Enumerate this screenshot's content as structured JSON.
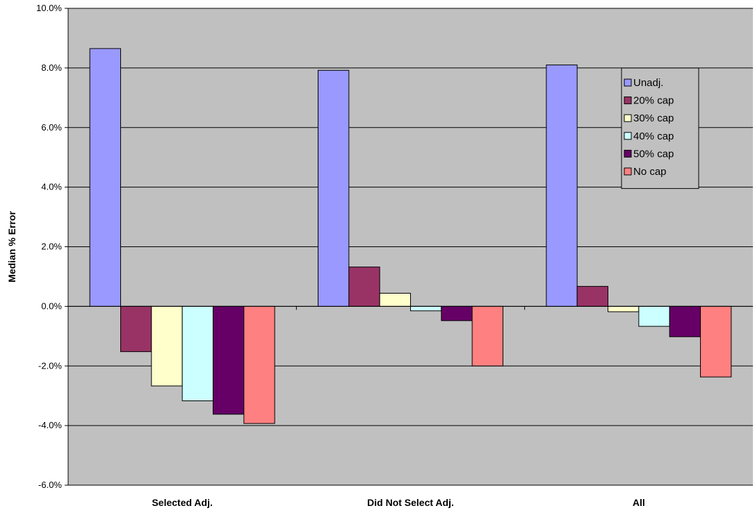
{
  "chart_data": {
    "type": "bar",
    "ylabel": "Median % Error",
    "xlabel": "",
    "ylim": [
      -6.0,
      10.0
    ],
    "ytick_step": 2.0,
    "y_ticks": [
      "-6.0%",
      "-4.0%",
      "-2.0%",
      "0.0%",
      "2.0%",
      "4.0%",
      "6.0%",
      "8.0%",
      "10.0%"
    ],
    "grid": true,
    "legend_position": "top-right",
    "plot_background": "#c0c0c0",
    "categories": [
      "Selected Adj.",
      "Did Not Select Adj.",
      "All"
    ],
    "series": [
      {
        "name": "Unadj.",
        "color": "#9999ff",
        "values": [
          8.65,
          7.92,
          8.1
        ]
      },
      {
        "name": "20% cap",
        "color": "#993366",
        "values": [
          -1.52,
          1.32,
          0.67
        ]
      },
      {
        "name": "30% cap",
        "color": "#ffffcc",
        "values": [
          -2.67,
          0.44,
          -0.18
        ]
      },
      {
        "name": "40% cap",
        "color": "#ccffff",
        "values": [
          -3.17,
          -0.15,
          -0.67
        ]
      },
      {
        "name": "50% cap",
        "color": "#660066",
        "values": [
          -3.62,
          -0.48,
          -1.02
        ]
      },
      {
        "name": "No cap",
        "color": "#ff8080",
        "values": [
          -3.93,
          -2.0,
          -2.37
        ]
      }
    ]
  }
}
